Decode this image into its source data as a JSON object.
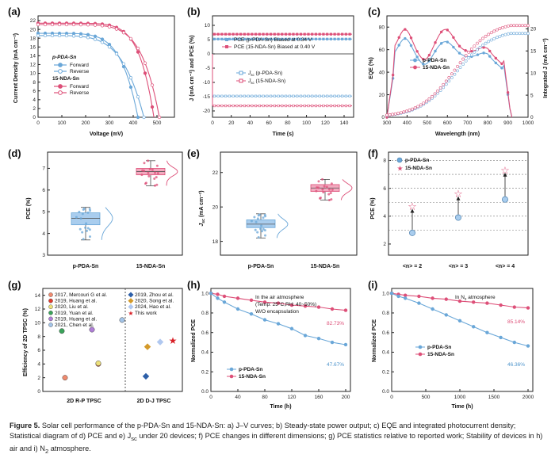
{
  "colors": {
    "blue": "#6aa7d8",
    "blueFill": "#a9cdee",
    "pink": "#dd4f78",
    "pinkFill": "#f3a9bf",
    "grid": "#777777"
  },
  "panels": {
    "a": {
      "label": "(a)",
      "xlabel": "Voltage (mV)",
      "ylabel": "Current Density (mA cm⁻²)",
      "xticks": [
        "0",
        "100",
        "200",
        "300",
        "400",
        "500"
      ],
      "yticks": [
        "0",
        "2",
        "4",
        "6",
        "8",
        "10",
        "12",
        "14",
        "16",
        "18",
        "20",
        "22"
      ],
      "legend": {
        "g1": "p-PDA-Sn",
        "g1a": "Forward",
        "g1b": "Reverse",
        "g2": "15-NDA-Sn",
        "g2a": "Forward",
        "g2b": "Reverse"
      }
    },
    "b": {
      "label": "(b)",
      "xlabel": "Time (s)",
      "ylabel": "J (mA cm⁻²) and PCE (%)",
      "xticks": [
        "0",
        "20",
        "40",
        "60",
        "80",
        "100",
        "120",
        "140"
      ],
      "yticks": [
        "-20",
        "-15",
        "-10",
        "-5",
        "0",
        "5",
        "10"
      ],
      "legend": {
        "pce1": "PCE (p-PDA-Sn) Biased at 0.34 V",
        "pce2": "PCE (15-NDA-Sn) Biased at 0.40 V",
        "j1": "J",
        "j1sub": "sc",
        "j1tail": " (p-PDA-Sn)",
        "j2": "J",
        "j2sub": "sc",
        "j2tail": " (15-NDA-Sn)"
      }
    },
    "c": {
      "label": "(c)",
      "xlabel": "Wavelength (nm)",
      "ylabel": "EQE (%)",
      "y2label": "Integrated J (mA cm⁻²)",
      "xticks": [
        "300",
        "400",
        "500",
        "600",
        "700",
        "800",
        "900",
        "1000"
      ],
      "yticks": [
        "0",
        "20",
        "40",
        "60",
        "80"
      ],
      "y2ticks": [
        "0",
        "5",
        "10",
        "15",
        "20"
      ],
      "legend": {
        "s1": "p-PDA-Sn",
        "s2": "15-NDA-Sn"
      }
    },
    "d": {
      "label": "(d)",
      "ylabel": "PCE (%)",
      "yticks": [
        "3",
        "4",
        "5",
        "6",
        "7"
      ],
      "cats": [
        "p-PDA-Sn",
        "15-NDA-Sn"
      ]
    },
    "e": {
      "label": "(e)",
      "ylabel": "J",
      "ylabelsub": "sc",
      "ylabeltail": " (mA cm⁻²)",
      "yticks": [
        "18",
        "20",
        "22"
      ],
      "cats": [
        "p-PDA-Sn",
        "15-NDA-Sn"
      ]
    },
    "f": {
      "label": "(f)",
      "ylabel": "PCE (%)",
      "yticks": [
        "2",
        "4",
        "6",
        "8"
      ],
      "cats": [
        "<n> = 2",
        "<n> = 3",
        "<n> = 4"
      ],
      "legend": {
        "s1": "p-PDA-Sn",
        "s2": "15-NDA-Sn"
      }
    },
    "g": {
      "label": "(g)",
      "ylabel": "Efficiency of 2D TPSC (%)",
      "yticks": [
        "0",
        "2",
        "4",
        "6",
        "8",
        "10",
        "12",
        "14"
      ],
      "cats": [
        "2D R-P TPSC",
        "2D D-J TPSC"
      ],
      "legendLeft": [
        "2017,  Mercouri G et al.",
        "2019,  Huang et al.",
        "2020,  Liu et al.",
        "2019,  Yuan et al.",
        "2019,  Huang et al.",
        "2021,  Chen et al."
      ],
      "legendRight": [
        "2019, Zhou et al.",
        "2020, Song et al.",
        "2024, Hao et al.",
        "This work"
      ]
    },
    "h": {
      "label": "(h)",
      "xlabel": "Time (h)",
      "ylabel": "Normalized PCE",
      "xticks": [
        "0",
        "40",
        "80",
        "120",
        "160",
        "200"
      ],
      "yticks": [
        "0.0",
        "0.2",
        "0.4",
        "0.6",
        "0.8",
        "1.0"
      ],
      "ann1": "In the air atmosphere",
      "ann2": "(Temp: 25°C,RH: 40~50%)",
      "ann3": "W/O encapsulation",
      "v1": "82.73%",
      "v2": "47.67%",
      "legend": {
        "s1": "p-PDA-Sn",
        "s2": "15-NDA-Sn"
      }
    },
    "i": {
      "label": "(i)",
      "xlabel": "Time (h)",
      "ylabel": "Normalized PCE",
      "xticks": [
        "0",
        "500",
        "1000",
        "1500",
        "2000"
      ],
      "yticks": [
        "0.0",
        "0.2",
        "0.4",
        "0.6",
        "0.8",
        "1.0"
      ],
      "ann1": "In N",
      "ann1sub": "2",
      "ann1tail": " atmosphere",
      "v1": "85.14%",
      "v2": "46.36%",
      "legend": {
        "s1": "p-PDA-Sn",
        "s2": "15-NDA-Sn"
      }
    }
  },
  "chart_data": [
    {
      "panel": "h",
      "type": "line",
      "title": "",
      "xlabel": "Time (h)",
      "ylabel": "Normalized PCE",
      "xlim": [
        0,
        200
      ],
      "ylim": [
        0,
        1.05
      ],
      "series": [
        {
          "name": "15-NDA-Sn",
          "x": [
            0,
            10,
            20,
            40,
            60,
            80,
            100,
            120,
            140,
            160,
            180,
            200
          ],
          "values": [
            1.0,
            0.99,
            0.97,
            0.95,
            0.93,
            0.91,
            0.9,
            0.88,
            0.87,
            0.86,
            0.84,
            0.8273
          ]
        },
        {
          "name": "p-PDA-Sn",
          "x": [
            0,
            10,
            20,
            40,
            60,
            80,
            100,
            120,
            140,
            160,
            180,
            200
          ],
          "values": [
            1.0,
            0.95,
            0.91,
            0.84,
            0.79,
            0.73,
            0.69,
            0.64,
            0.57,
            0.54,
            0.5,
            0.4767
          ]
        }
      ]
    },
    {
      "panel": "i",
      "type": "line",
      "title": "",
      "xlabel": "Time (h)",
      "ylabel": "Normalized PCE",
      "xlim": [
        0,
        2000
      ],
      "ylim": [
        0,
        1.05
      ],
      "series": [
        {
          "name": "15-NDA-Sn",
          "x": [
            0,
            100,
            200,
            400,
            600,
            800,
            1000,
            1200,
            1400,
            1600,
            1800,
            2000
          ],
          "values": [
            1.0,
            0.99,
            0.98,
            0.97,
            0.95,
            0.94,
            0.92,
            0.91,
            0.9,
            0.88,
            0.86,
            0.8514
          ]
        },
        {
          "name": "p-PDA-Sn",
          "x": [
            0,
            100,
            200,
            400,
            600,
            800,
            1000,
            1200,
            1400,
            1600,
            1800,
            2000
          ],
          "values": [
            1.0,
            0.97,
            0.95,
            0.9,
            0.84,
            0.78,
            0.72,
            0.66,
            0.6,
            0.55,
            0.5,
            0.4636
          ]
        }
      ]
    },
    {
      "panel": "f",
      "type": "scatter",
      "title": "",
      "xlabel": "",
      "ylabel": "PCE (%)",
      "ylim": [
        2,
        8.6
      ],
      "categories": [
        "<n> = 2",
        "<n> = 3",
        "<n> = 4"
      ],
      "series": [
        {
          "name": "p-PDA-Sn",
          "values": [
            2.8,
            3.9,
            5.2
          ]
        },
        {
          "name": "15-NDA-Sn",
          "values": [
            4.7,
            5.6,
            7.3
          ]
        }
      ]
    },
    {
      "panel": "d",
      "type": "box",
      "title": "",
      "ylabel": "PCE (%)",
      "ylim": [
        3,
        7.6
      ],
      "categories": [
        "p-PDA-Sn",
        "15-NDA-Sn"
      ],
      "series": [
        {
          "name": "p-PDA-Sn",
          "q1": 4.4,
          "median": 4.7,
          "q3": 4.95,
          "min": 3.7,
          "max": 5.2
        },
        {
          "name": "15-NDA-Sn",
          "q1": 6.7,
          "median": 6.85,
          "q3": 7.0,
          "min": 6.2,
          "max": 7.35
        }
      ]
    },
    {
      "panel": "e",
      "type": "box",
      "title": "",
      "ylabel": "Jsc (mA cm-2)",
      "ylim": [
        17.2,
        23
      ],
      "categories": [
        "p-PDA-Sn",
        "15-NDA-Sn"
      ],
      "series": [
        {
          "name": "p-PDA-Sn",
          "q1": 18.8,
          "median": 19.0,
          "q3": 19.25,
          "min": 18.2,
          "max": 19.6
        },
        {
          "name": "15-NDA-Sn",
          "q1": 20.9,
          "median": 21.1,
          "q3": 21.3,
          "min": 20.4,
          "max": 21.6
        }
      ]
    },
    {
      "panel": "g",
      "type": "scatter",
      "title": "",
      "ylabel": "Efficiency of 2D TPSC (%)",
      "ylim": [
        0,
        15
      ],
      "categories": [
        "2D R-P TPSC",
        "2D D-J TPSC"
      ],
      "series": [
        {
          "name": "2017, Mercouri G et al.",
          "values": [
            2.0,
            null
          ]
        },
        {
          "name": "2019, Huang et al.",
          "values": [
            4.0,
            null
          ]
        },
        {
          "name": "2020, Liu et al.",
          "values": [
            4.1,
            null
          ]
        },
        {
          "name": "2019, Yuan et al.",
          "values": [
            8.8,
            null
          ]
        },
        {
          "name": "2019, Huang et al. (2)",
          "values": [
            9.0,
            null
          ]
        },
        {
          "name": "2021, Chen et al.",
          "values": [
            10.4,
            null
          ]
        },
        {
          "name": "2019, Zhou et al.",
          "values": [
            null,
            2.2
          ]
        },
        {
          "name": "2020, Song et al.",
          "values": [
            null,
            6.5
          ]
        },
        {
          "name": "2024, Hao et al.",
          "values": [
            null,
            7.2
          ]
        },
        {
          "name": "This work",
          "values": [
            null,
            7.4
          ]
        }
      ]
    }
  ],
  "caption": {
    "fig": "Figure 5.",
    "text": " Solar cell performance of the p-PDA-Sn and 15-NDA-Sn: a) J–V curves; b) Steady-state power output; c) EQE and integrated photocurrent density; Statistical diagram of d) PCE and e) J",
    "sub": "sc",
    "text2": " under 20 devices; f) PCE changes in different dimensions; g) PCE statistics relative to reported work; Stability of devices in h) air and i) N",
    "sub2": "2",
    "text3": " atmosphere."
  }
}
